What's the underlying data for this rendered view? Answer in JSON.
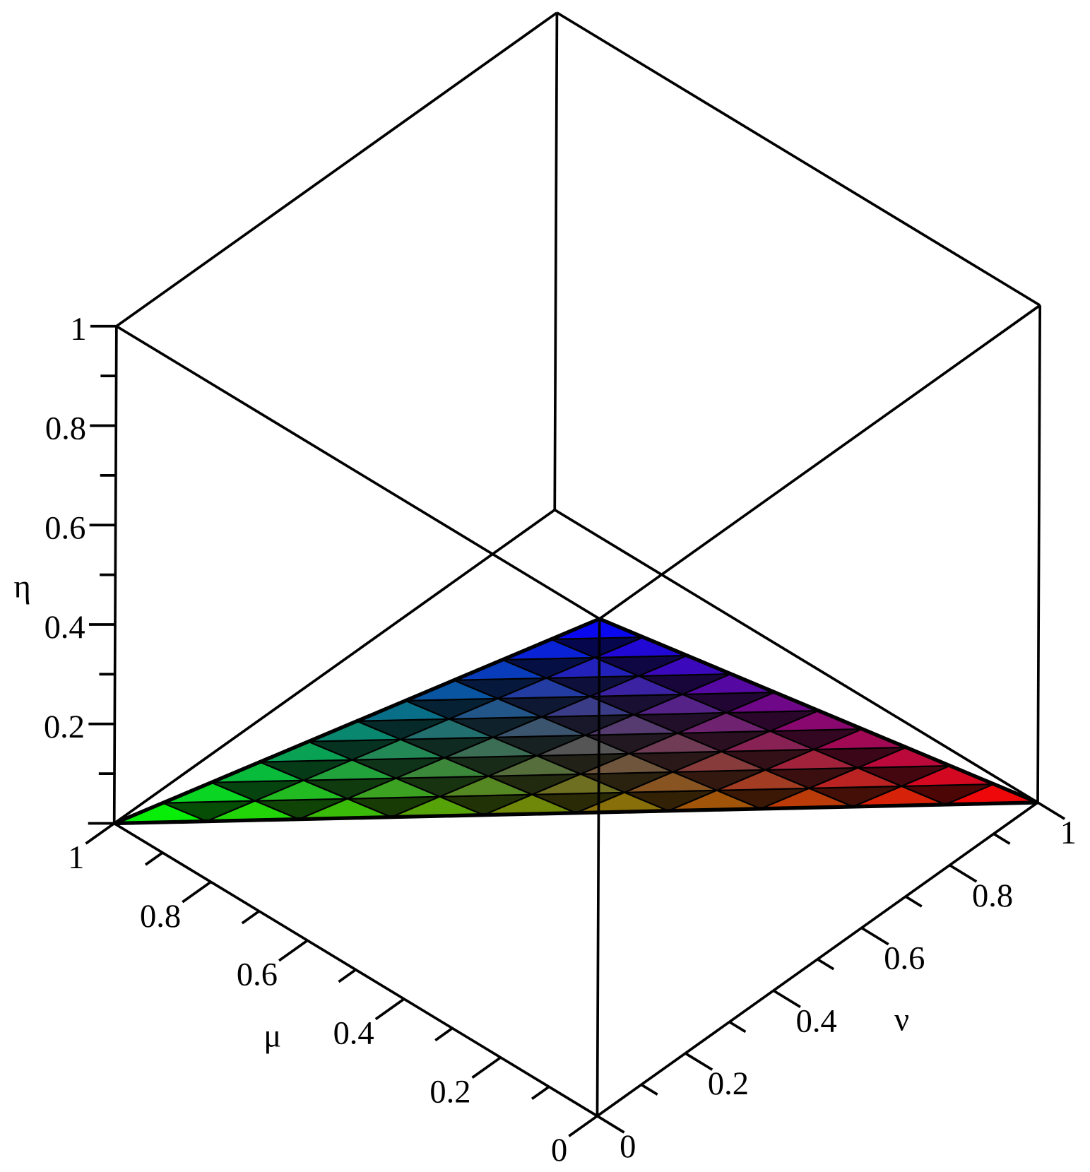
{
  "chart_data": {
    "type": "surface3d",
    "xlabel": "μ",
    "ylabel": "ν",
    "zlabel": "η",
    "xlim": [
      0,
      1
    ],
    "ylim": [
      0,
      1
    ],
    "zlim": [
      0,
      1
    ],
    "xticks": [
      0,
      0.2,
      0.4,
      0.6,
      0.8,
      1
    ],
    "yticks": [
      0,
      0.2,
      0.4,
      0.6,
      0.8,
      1
    ],
    "zticks": [
      0.2,
      0.4,
      0.6,
      0.8,
      1
    ],
    "surface": {
      "vertices": [
        [
          1,
          0,
          0
        ],
        [
          0,
          1,
          0
        ],
        [
          0,
          0,
          1
        ]
      ],
      "mesh": 10
    }
  }
}
